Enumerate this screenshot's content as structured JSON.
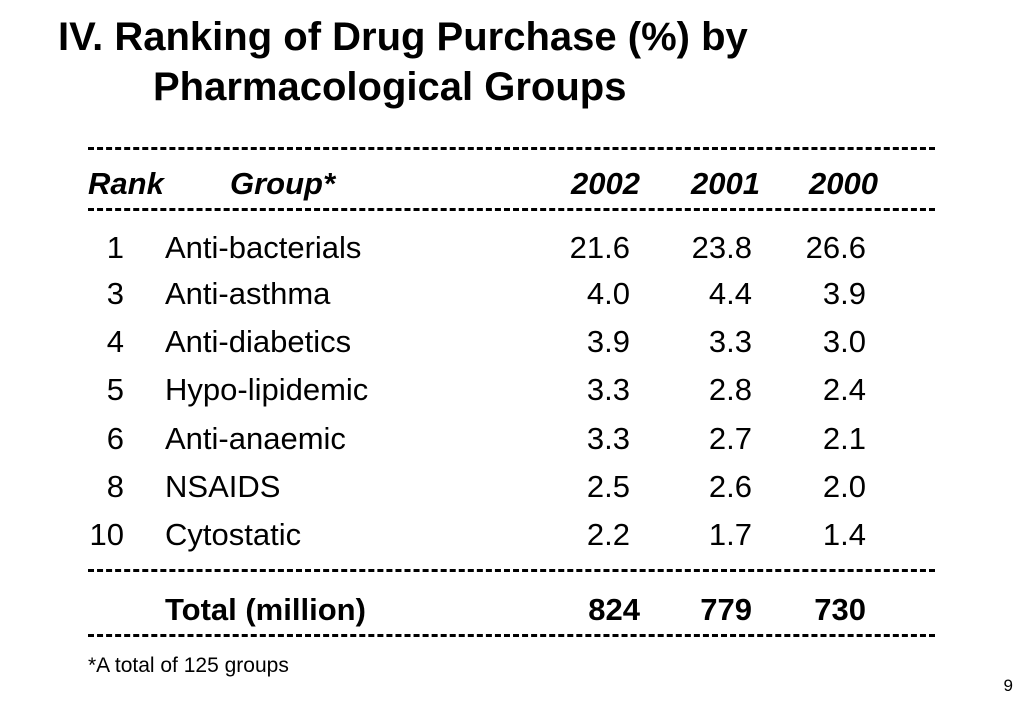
{
  "title": {
    "line1": "IV. Ranking of Drug Purchase (%) by",
    "line2": "Pharmacological Groups"
  },
  "table": {
    "headers": {
      "rank": "Rank",
      "group": "Group*",
      "y2002": "2002",
      "y2001": "2001",
      "y2000": "2000"
    },
    "rows": [
      {
        "rank": "1",
        "group": "Anti-bacterials",
        "y2002": "21.6",
        "y2001": "23.8",
        "y2000": "26.6"
      },
      {
        "rank": "3",
        "group": "Anti-asthma",
        "y2002": "4.0",
        "y2001": "4.4",
        "y2000": "3.9"
      },
      {
        "rank": "4",
        "group": "Anti-diabetics",
        "y2002": "3.9",
        "y2001": "3.3",
        "y2000": "3.0"
      },
      {
        "rank": "5",
        "group": "Hypo-lipidemic",
        "y2002": "3.3",
        "y2001": "2.8",
        "y2000": "2.4"
      },
      {
        "rank": "6",
        "group": "Anti-anaemic",
        "y2002": "3.3",
        "y2001": "2.7",
        "y2000": "2.1"
      },
      {
        "rank": "8",
        "group": "NSAIDS",
        "y2002": "2.5",
        "y2001": "2.6",
        "y2000": "2.0"
      },
      {
        "rank": "10",
        "group": "Cytostatic",
        "y2002": "2.2",
        "y2001": "1.7",
        "y2000": "1.4"
      }
    ],
    "total": {
      "label": "Total (million)",
      "y2002": "824",
      "y2001": "779",
      "y2000": "730"
    }
  },
  "footnote": "*A total of 125 groups",
  "page_number": "9"
}
